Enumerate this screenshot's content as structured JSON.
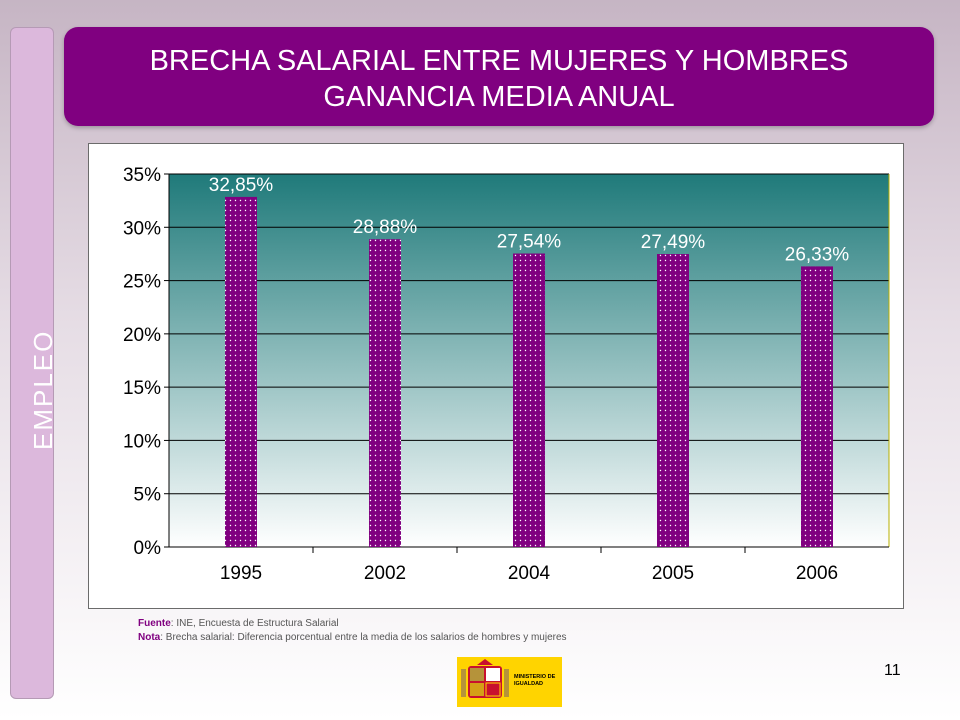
{
  "side_label": "EMPLEO",
  "title": {
    "line1": "BRECHA SALARIAL ENTRE MUJERES Y HOMBRES",
    "line2": "GANANCIA MEDIA ANUAL"
  },
  "notes": {
    "fuente_label": "Fuente",
    "fuente_text": ": INE, Encuesta de Estructura Salarial",
    "nota_label": "Nota",
    "nota_text": ": Brecha salarial: Diferencia porcentual entre la media de los salarios de hombres y mujeres"
  },
  "page_number": "11",
  "logo": {
    "text": "MINISTERIO DE IGUALDAD",
    "icon": "spain-coat-of-arms-icon"
  },
  "colors": {
    "title_bg": "#800080",
    "bar": "#800080",
    "plot_top": "#1f7a7a",
    "plot_bottom": "#ffffff",
    "logo_bg": "#ffd400"
  },
  "chart_data": {
    "type": "bar",
    "title": "",
    "xlabel": "",
    "ylabel": "",
    "categories": [
      "1995",
      "2002",
      "2004",
      "2005",
      "2006"
    ],
    "values": [
      32.85,
      28.88,
      27.54,
      27.49,
      26.33
    ],
    "data_labels": [
      "32,85%",
      "28,88%",
      "27,54%",
      "27,49%",
      "26,33%"
    ],
    "y_ticks": [
      0,
      5,
      10,
      15,
      20,
      25,
      30,
      35
    ],
    "y_tick_labels": [
      "0%",
      "5%",
      "10%",
      "15%",
      "20%",
      "25%",
      "30%",
      "35%"
    ],
    "ylim": [
      0,
      35
    ],
    "grid": true,
    "legend": "none"
  }
}
